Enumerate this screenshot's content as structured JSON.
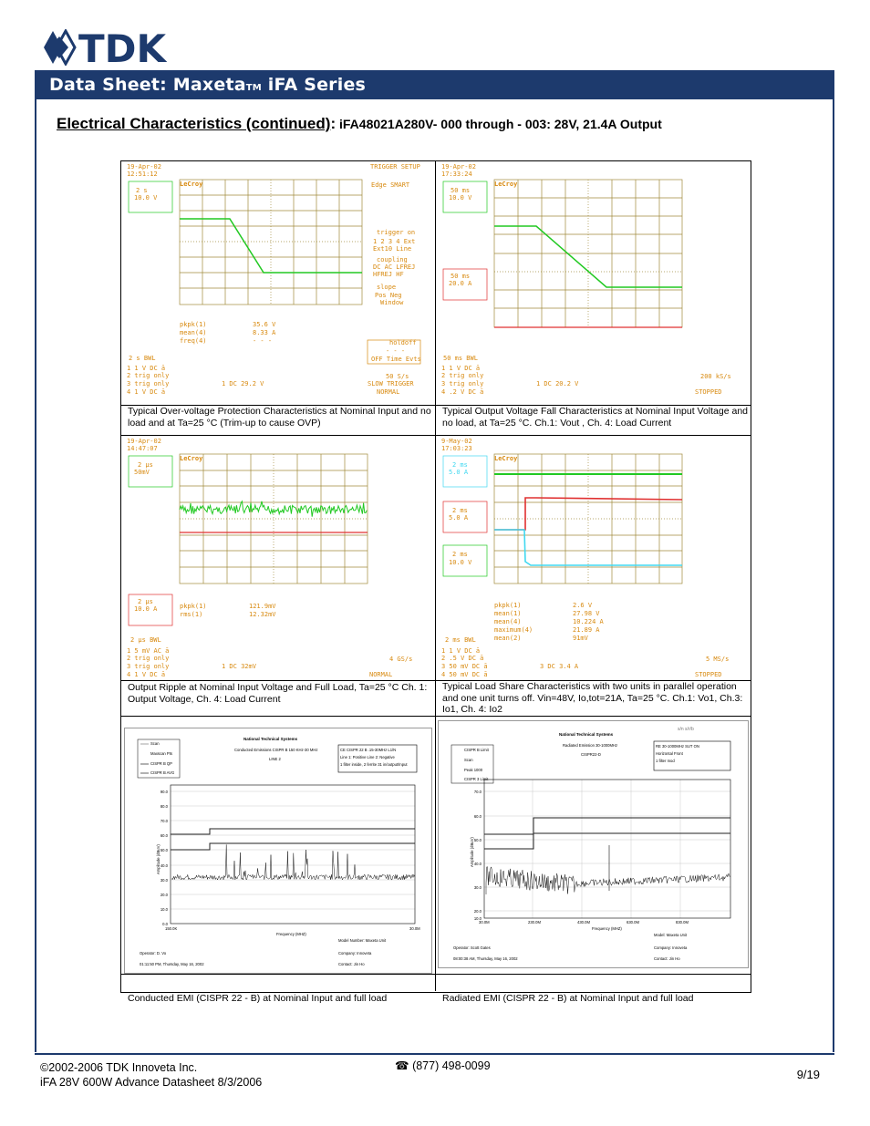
{
  "brand": {
    "logo_text": "TDK"
  },
  "header": {
    "title": "Data Sheet: Maxeta",
    "tm": "TM",
    "title_suffix": " iFA Series"
  },
  "section": {
    "title": "Electrical Characteristics (continued)",
    "colon": ":",
    "subtitle": " iFA48021A280V- 000 through - 003:   28V, 21.4A Output"
  },
  "scopes": [
    {
      "date": "19-Apr-02",
      "time": "12:51:12",
      "brand": "LeCroy",
      "ch_box": [
        "2 s",
        "10.0 V"
      ],
      "right_text": [
        "TRIGGER SETUP",
        "Edge SMART",
        "trigger on",
        "1 2 3 4 Ext",
        "Ext10 Line",
        "coupling",
        "DC AC LFREJ",
        "HFREJ HF",
        "slope",
        "Pos  Neg",
        "Window",
        "holdoff",
        "- - -",
        "OFF Time Evts"
      ],
      "meas": [
        "pkpk(1)",
        "mean(4)",
        "freq(4)"
      ],
      "meas_vals": [
        "35.6 V",
        "8.33 A",
        "- - -"
      ],
      "bottom": [
        "2  s      BWL",
        "1  1  V  DC ā",
        "2  trig only",
        "3  trig only",
        "4  1  V  DC ā"
      ],
      "trig": "1  DC 29.2 V",
      "status": [
        "50 S/s",
        "SLOW TRIGGER",
        "NORMAL"
      ]
    },
    {
      "date": "19-Apr-02",
      "time": "17:33:24",
      "brand": "LeCroy",
      "ch_box": [
        "50 ms",
        "10.0 V"
      ],
      "ch_box2": [
        "50 ms",
        "20.0 A"
      ],
      "bottom": [
        "50 ms      BWL",
        "1  1  V  DC ā",
        "2  trig only",
        "3  trig only",
        "4  .2  V  DC ā"
      ],
      "trig": "1  DC 20.2 V",
      "status": [
        "200 kS/s",
        "STOPPED"
      ]
    },
    {
      "date": "19-Apr-02",
      "time": "14:47:07",
      "brand": "LeCroy",
      "ch_box": [
        "2 µs",
        "50mV"
      ],
      "ch_box2": [
        "2 µs",
        "10.0 A"
      ],
      "meas": [
        "pkpk(1)",
        "rms(1)"
      ],
      "meas_vals": [
        "121.9mV",
        "12.32mV"
      ],
      "bottom": [
        "2 µs      BWL",
        "1  5 mV  AC ā",
        "2  trig only",
        "3  trig only",
        "4  1  V  DC ā"
      ],
      "trig": "1  DC 32mV",
      "status": [
        "4 GS/s",
        "NORMAL"
      ]
    },
    {
      "date": "9-May-02",
      "time": "17:03:23",
      "brand": "LeCroy",
      "ch_box": [
        "2 ms",
        "5.0 A"
      ],
      "ch_box2": [
        "2 ms",
        "5.0 A"
      ],
      "ch_box3": [
        "2 ms",
        "10.0 V"
      ],
      "meas": [
        "pkpk(1)",
        "mean(1)",
        "mean(4)",
        "maximum(4)",
        "mean(2)"
      ],
      "meas_vals": [
        "2.6 V",
        "27.98 V",
        "10.224 A",
        "21.89 A",
        "91mV"
      ],
      "bottom": [
        "2 ms      BWL",
        "1  1  V  DC ā",
        "2  .5  V  DC ā",
        "3  50 mV  DC ā",
        "4  50 mV  DC ā"
      ],
      "trig": "3  DC 3.4 A",
      "status": [
        "5 MS/s",
        "STOPPED"
      ]
    }
  ],
  "captions": [
    "Typical Over-voltage Protection Characteristics at Nominal Input and no load and at Ta=25 °C  (Trim-up to cause OVP)",
    "Typical Output Voltage Fall Characteristics at Nominal Input Voltage and no load, at Ta=25 °C.  Ch.1: Vout , Ch. 4: Load Current",
    "Output Ripple at Nominal Input Voltage and Full Load, Ta=25 °C Ch. 1: Output Voltage, Ch. 4: Load Current",
    "Typical Load Share Characteristics with two units in parallel operation and one unit turns off.  Vin=48V, Io,tot=21A, Ta=25 °C. Ch.1: Vo1, Ch.3: Io1, Ch. 4: Io2",
    "Conducted EMI (CISPR 22 - B) at Nominal Input and full load",
    "Radiated EMI (CISPR 22 - B) at Nominal Input and full load"
  ],
  "emi": [
    {
      "company": "National Technical Systems",
      "subtitle": "Conducted Emissions CISPR B 150 KHz-30 MHz",
      "line": "LINE 2",
      "box": [
        "CE CISPR 22 B  .15-30MHz  L1/N",
        "Line 1: Positive  Line 2: Negative",
        "1 filter inside, 2 ferrite 31 in/output/Input"
      ],
      "legend": [
        "Scan",
        "Maxscan Pts",
        "CISPR B QP",
        "CISPR B AVG"
      ],
      "yticks": [
        "90.0",
        "80.0",
        "70.0",
        "60.0",
        "50.0",
        "40.0",
        "30.0",
        "20.0",
        "10.0",
        "0.0"
      ],
      "ylabel": "Amplitude (dBuV)",
      "xticks": [
        "150.0K",
        "30.0M"
      ],
      "xlabel": "Frequency (MHZ)",
      "model": "Model Number: Maxeta Unit",
      "operator": "Operator: D. Vo",
      "company_line": "Company: Innoveta",
      "date": "01:11:50 PM, Thursday, May 16, 2002",
      "contact": "Contact: Jin Ho"
    },
    {
      "company": "National Technical Systems",
      "subtitle": "Radiated Emission 30-1000MHz",
      "line": "CISPR22-D",
      "box": [
        "RE 30-1000MHz SUT ON",
        "Horizontal Front",
        "1 filter mod"
      ],
      "legend": [
        "CISPR B Limit",
        "Scan",
        "Peak 1000",
        "CISPR 3 Limit"
      ],
      "yticks": [
        "70.0",
        "60.0",
        "50.0",
        "40.0",
        "30.0",
        "20.0",
        "10.0"
      ],
      "ylabel": "Amplitude (dBuV)",
      "xticks": [
        "30.0M",
        "230.0M",
        "430.0M",
        "630.0M",
        "830.0M"
      ],
      "xlabel": "Frequency (MHZ)",
      "model": "Model: Maxeta Unit",
      "operator": "Operator: Scott Gates",
      "company_line": "Company: Innoveta",
      "date": "08:00:38 AM, Thursday, May 16, 2002",
      "contact": "Contact: Jin Ho",
      "corner": "s/n  s/r/b"
    }
  ],
  "footer": {
    "copyright": "©2002-2006 TDK Innoveta Inc.",
    "doc": "iFA 28V 600W Advance Datasheet   8/3/2006",
    "phone": "(877) 498-0099",
    "page": "9/19"
  },
  "colors": {
    "navy": "#1d3a6d",
    "scope_grid": "#a08a3c",
    "ch1": "#22c922",
    "ch4": "#e03030",
    "ch3": "#40d8f0",
    "scope_text": "#d88a10"
  }
}
